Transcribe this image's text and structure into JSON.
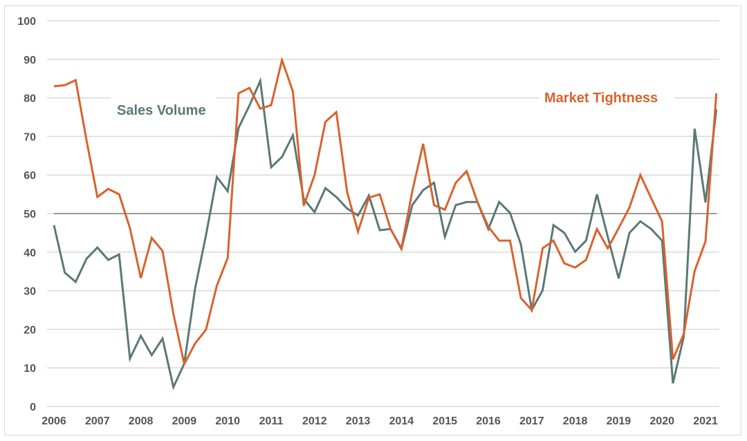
{
  "chart_data": {
    "type": "line",
    "title": "",
    "xlabel": "",
    "ylabel": "",
    "ylim": [
      0,
      100
    ],
    "yticks": [
      0,
      10,
      20,
      30,
      40,
      50,
      60,
      70,
      80,
      90,
      100
    ],
    "xticks": [
      "2006",
      "2007",
      "2008",
      "2009",
      "2010",
      "2011",
      "2012",
      "2013",
      "2014",
      "2015",
      "2016",
      "2017",
      "2018",
      "2019",
      "2020",
      "2021"
    ],
    "x_start": 2006,
    "x_step": "quarter",
    "reference_line": 50,
    "grid": true,
    "legend": "inline labels",
    "series": [
      {
        "name": "Sales Volume",
        "color": "#5a7878",
        "values": [
          47,
          34.7,
          32.3,
          38.3,
          41.2,
          38,
          39.4,
          12.4,
          18.3,
          13.3,
          17.6,
          5,
          11.1,
          30.6,
          44.4,
          59.5,
          55.8,
          72.2,
          78,
          84.4,
          62,
          64.7,
          70.3,
          53.8,
          50.4,
          56.6,
          54.3,
          51.3,
          49.5,
          54.7,
          45.7,
          46,
          40.8,
          52.2,
          56.1,
          58,
          44,
          52.2,
          53,
          53,
          46,
          53,
          50.2,
          42,
          25,
          30.1,
          47,
          45,
          40.1,
          43,
          55,
          44,
          33.2,
          45,
          48,
          46,
          43,
          6,
          18.1,
          72,
          52.9,
          77
        ]
      },
      {
        "name": "Market Tightness",
        "color": "#d9622b",
        "values": [
          83,
          83.3,
          84.6,
          69,
          54.3,
          56.4,
          55,
          46.2,
          33.3,
          43.7,
          40.3,
          24,
          11,
          16.3,
          19.9,
          31.3,
          38.5,
          81.2,
          82.6,
          77.2,
          78.1,
          89.8,
          81.7,
          52,
          60,
          73.8,
          76.3,
          55.6,
          45.3,
          54.1,
          55,
          46,
          41,
          55.8,
          68.1,
          52.2,
          51,
          58,
          61,
          53,
          46.6,
          43,
          43,
          28.1,
          25,
          41,
          43,
          37.1,
          36,
          38,
          46,
          41,
          46.2,
          51.6,
          60,
          54,
          48,
          12.2,
          18.8,
          35.1,
          42.8,
          81.2
        ]
      }
    ]
  }
}
